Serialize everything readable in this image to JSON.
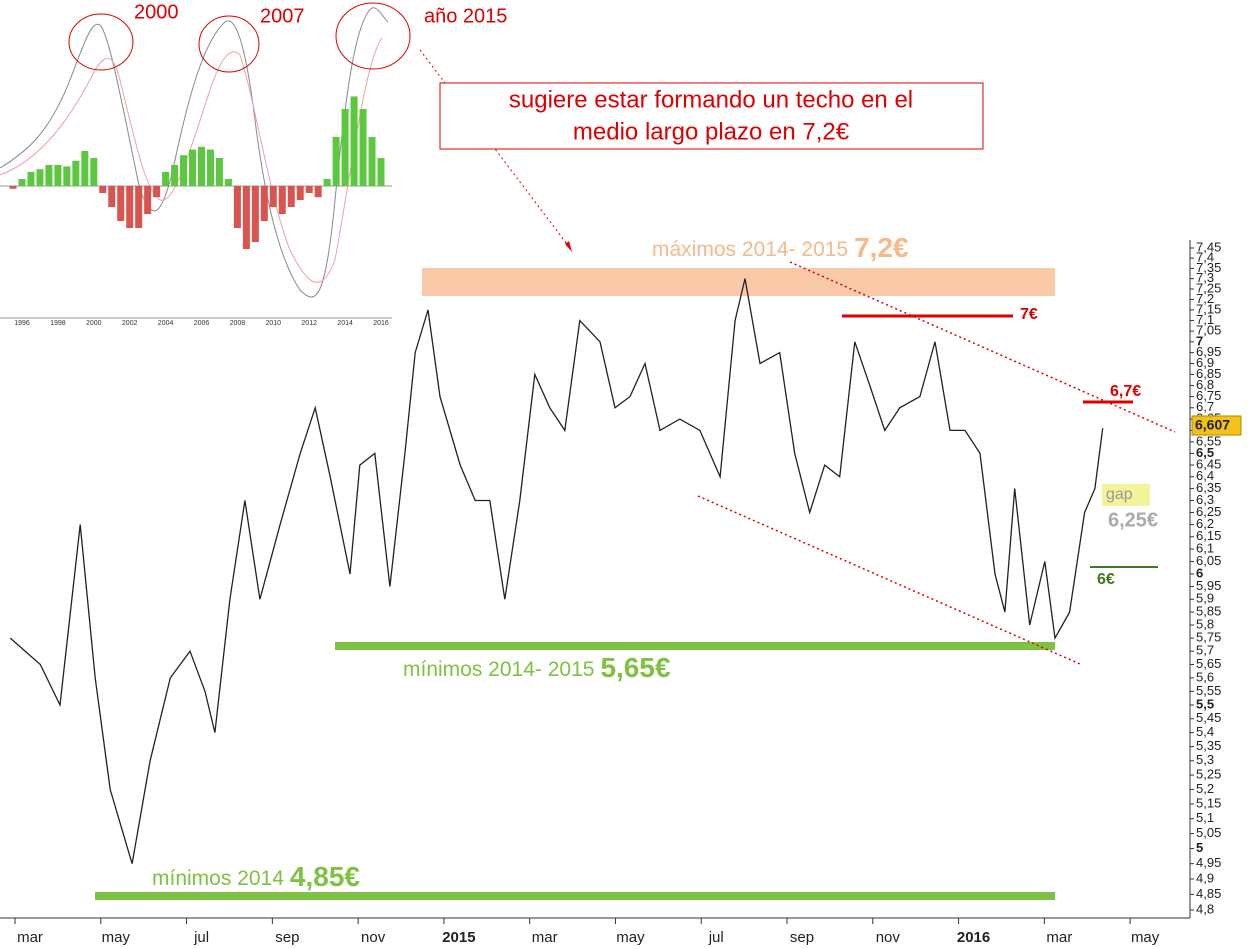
{
  "chart_data": [
    {
      "type": "line",
      "log": true,
      "color": "#222222",
      "xlim": [
        0.3,
        28
      ],
      "ylim": [
        4.8,
        7.45
      ],
      "xticks": [
        {
          "value": 1,
          "label": "mar"
        },
        {
          "value": 3,
          "label": "may"
        },
        {
          "value": 5,
          "label": "jul"
        },
        {
          "value": 7,
          "label": "sep"
        },
        {
          "value": 9,
          "label": "nov"
        },
        {
          "value": 11,
          "label": "2015"
        },
        {
          "value": 13,
          "label": "mar"
        },
        {
          "value": 15,
          "label": "may"
        },
        {
          "value": 17,
          "label": "jul"
        },
        {
          "value": 19,
          "label": "sep"
        },
        {
          "value": 21,
          "label": "nov"
        },
        {
          "value": 23,
          "label": "2016"
        },
        {
          "value": 25,
          "label": "mar"
        },
        {
          "value": 27,
          "label": "may"
        }
      ],
      "yticks": [
        {
          "value": 7.45,
          "label": "7,45"
        },
        {
          "value": 7.4,
          "label": "7,4"
        },
        {
          "value": 7.35,
          "label": "7,35"
        },
        {
          "value": 7.3,
          "label": "7,3"
        },
        {
          "value": 7.25,
          "label": "7,25"
        },
        {
          "value": 7.2,
          "label": "7,2"
        },
        {
          "value": 7.15,
          "label": "7,15"
        },
        {
          "value": 7.1,
          "label": "7,1"
        },
        {
          "value": 7.05,
          "label": "7,05"
        },
        7,
        {
          "value": 6.95,
          "label": "6,95"
        },
        {
          "value": 6.9,
          "label": "6,9"
        },
        {
          "value": 6.85,
          "label": "6,85"
        },
        {
          "value": 6.8,
          "label": "6,8"
        },
        {
          "value": 6.75,
          "label": "6,75"
        },
        {
          "value": 6.7,
          "label": "6,7"
        },
        {
          "value": 6.65,
          "label": "6,65"
        },
        {
          "value": 6.6,
          "label": "6,6"
        },
        {
          "value": 6.55,
          "label": "6,55"
        },
        {
          "value": 6.5,
          "label": "6,5"
        },
        {
          "value": 6.45,
          "label": "6,45"
        },
        {
          "value": 6.4,
          "label": "6,4"
        },
        {
          "value": 6.35,
          "label": "6,35"
        },
        {
          "value": 6.3,
          "label": "6,3"
        },
        {
          "value": 6.25,
          "label": "6,25"
        },
        {
          "value": 6.2,
          "label": "6,2"
        },
        {
          "value": 6.15,
          "label": "6,15"
        },
        {
          "value": 6.1,
          "label": "6,1"
        },
        {
          "value": 6.05,
          "label": "6,05"
        },
        6,
        {
          "value": 5.95,
          "label": "5,95"
        },
        {
          "value": 5.9,
          "label": "5,9"
        },
        {
          "value": 5.85,
          "label": "5,85"
        },
        {
          "value": 5.8,
          "label": "5,8"
        },
        {
          "value": 5.75,
          "label": "5,75"
        },
        {
          "value": 5.7,
          "label": "5,7"
        },
        {
          "value": 5.65,
          "label": "5,65"
        },
        {
          "value": 5.6,
          "label": "5,6"
        },
        {
          "value": 5.55,
          "label": "5,55"
        },
        {
          "value": 5.5,
          "label": "5,5"
        },
        {
          "value": 5.45,
          "label": "5,45"
        },
        {
          "value": 5.4,
          "label": "5,4"
        },
        {
          "value": 5.35,
          "label": "5,35"
        },
        {
          "value": 5.3,
          "label": "5,3"
        },
        {
          "value": 5.25,
          "label": "5,25"
        },
        {
          "value": 5.2,
          "label": "5,2"
        },
        {
          "value": 5.15,
          "label": "5,15"
        },
        {
          "value": 5.1,
          "label": "5,1"
        },
        {
          "value": 5.05,
          "label": "5,05"
        },
        5,
        {
          "value": 4.95,
          "label": "4,95"
        },
        {
          "value": 4.9,
          "label": "4,9"
        },
        {
          "value": 4.85,
          "label": "4,85"
        },
        {
          "value": 4.8,
          "label": "4,8"
        }
      ],
      "x": [
        0.54,
        1.24,
        1.7,
        2.17,
        2.52,
        2.87,
        3.38,
        3.8,
        4.27,
        4.73,
        5.08,
        5.31,
        5.66,
        6.01,
        6.36,
        6.83,
        7.3,
        7.65,
        8.0,
        8.46,
        8.69,
        9.04,
        9.39,
        9.74,
        9.98,
        10.28,
        10.56,
        11.03,
        11.38,
        11.72,
        12.07,
        12.42,
        12.77,
        13.12,
        13.47,
        13.82,
        14.29,
        14.64,
        14.99,
        15.34,
        15.69,
        16.15,
        16.62,
        17.09,
        17.44,
        17.67,
        18.02,
        18.48,
        18.83,
        19.18,
        19.53,
        19.88,
        20.23,
        20.58,
        20.93,
        21.28,
        21.75,
        22.1,
        22.45,
        22.8,
        23.15,
        23.5,
        23.73,
        23.96,
        24.31,
        24.66,
        24.9,
        25.24,
        25.59,
        25.83,
        26.01
      ],
      "values": [
        5.75,
        5.65,
        5.5,
        6.2,
        5.6,
        5.2,
        4.95,
        5.3,
        5.6,
        5.7,
        5.55,
        5.4,
        5.9,
        6.3,
        5.9,
        6.2,
        6.5,
        6.7,
        6.4,
        6.0,
        6.45,
        6.5,
        5.95,
        6.5,
        6.95,
        7.15,
        6.75,
        6.45,
        6.3,
        6.3,
        5.9,
        6.3,
        6.85,
        6.7,
        6.6,
        7.1,
        7.0,
        6.7,
        6.75,
        6.9,
        6.6,
        6.65,
        6.6,
        6.4,
        7.1,
        7.3,
        6.9,
        6.95,
        6.5,
        6.25,
        6.45,
        6.4,
        7.0,
        6.8,
        6.6,
        6.7,
        6.75,
        7.0,
        6.6,
        6.6,
        6.5,
        6.0,
        5.85,
        6.35,
        5.8,
        6.05,
        5.75,
        5.85,
        6.25,
        6.35,
        6.61
      ],
      "annotations": {
        "y2000": "2000",
        "y2007": "2007",
        "y2015": "año 2015",
        "callout": [
          "sugiere estar formando un techo en el",
          "medio largo plazo en 7,2€"
        ],
        "max_label": "máximos 2014- 2015",
        "max_value": "7,2€",
        "min_label": "mínimos 2014- 2015",
        "min_value": "5,65€",
        "min14_label": "mínimos 2014",
        "min14_value": "4,85€",
        "r7": "7€",
        "r67": "6,7€",
        "s6": "6€",
        "gap": "gap",
        "gap_value": "6,25€",
        "last": "6,607"
      }
    },
    {
      "type": "bar",
      "pos_color": "#5cc840",
      "neg_color": "#d9534f",
      "xticks": [
        1996,
        1998,
        2000,
        2002,
        2004,
        2006,
        2008,
        2010,
        2012,
        2014,
        2016
      ],
      "x": [
        1995.5,
        1996,
        1996.5,
        1997,
        1997.5,
        1998,
        1998.5,
        1999,
        1999.5,
        2000,
        2000.5,
        2001,
        2001.5,
        2002,
        2002.5,
        2003,
        2003.5,
        2004,
        2004.5,
        2005,
        2005.5,
        2006,
        2006.5,
        2007,
        2007.5,
        2008,
        2008.5,
        2009,
        2009.5,
        2010,
        2010.5,
        2011,
        2011.5,
        2012,
        2012.5,
        2013,
        2013.5,
        2014,
        2014.5,
        2015,
        2015.5,
        2016
      ],
      "values": [
        -0.02,
        0.05,
        0.1,
        0.12,
        0.15,
        0.15,
        0.14,
        0.18,
        0.25,
        0.2,
        -0.05,
        -0.15,
        -0.25,
        -0.3,
        -0.3,
        -0.2,
        -0.08,
        0.1,
        0.15,
        0.22,
        0.26,
        0.28,
        0.26,
        0.2,
        0.05,
        -0.3,
        -0.45,
        -0.4,
        -0.25,
        -0.15,
        -0.2,
        -0.15,
        -0.1,
        -0.05,
        -0.08,
        0.05,
        0.35,
        0.55,
        0.64,
        0.55,
        0.35,
        0.2
      ]
    }
  ]
}
